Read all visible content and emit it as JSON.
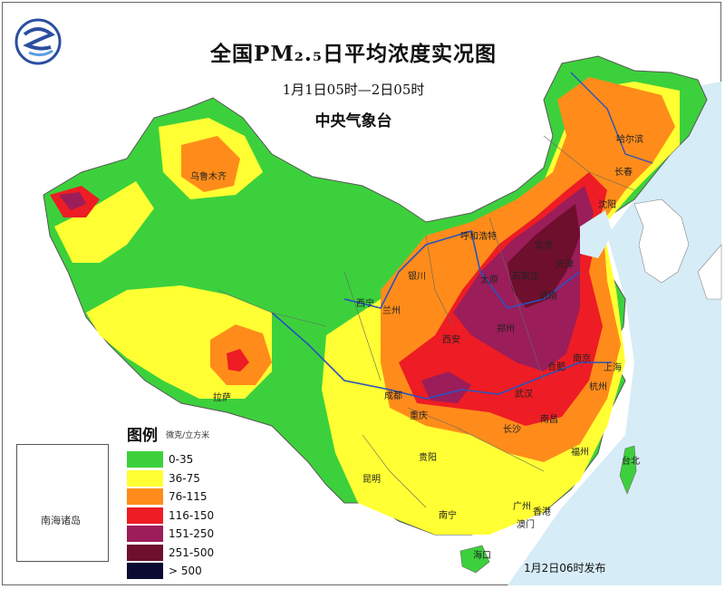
{
  "header": {
    "title": "全国PM₂.₅日平均浓度实况图",
    "subtitle": "1月1日05时—2日05时",
    "agency": "中央气象台"
  },
  "logo": {
    "icon": "cma-logo"
  },
  "legend": {
    "title": "图例",
    "unit": "微克/立方米",
    "items": [
      {
        "label": "0-35",
        "color": "#3cd13c"
      },
      {
        "label": "36-75",
        "color": "#ffff33"
      },
      {
        "label": "76-115",
        "color": "#ff8c1a"
      },
      {
        "label": "116-150",
        "color": "#ee1c24"
      },
      {
        "label": "151-250",
        "color": "#9b1d5a"
      },
      {
        "label": "251-500",
        "color": "#6e0f2d"
      },
      {
        "label": "> 500",
        "color": "#0a0a33"
      }
    ]
  },
  "inset": {
    "label": "南海诸岛"
  },
  "release": "1月2日06时发布",
  "cities": {
    "urumqi": "乌鲁木齐",
    "harbin": "哈尔滨",
    "changchun": "长春",
    "shenyang": "沈阳",
    "hohhot": "呼和浩特",
    "beijing": "北京",
    "tianjin": "天津",
    "shijiazhuang": "石家庄",
    "taiyuan": "太原",
    "jinan": "济南",
    "yinchuan": "银川",
    "xining": "西宁",
    "lanzhou": "兰州",
    "xian": "西安",
    "zhengzhou": "郑州",
    "hefei": "合肥",
    "nanjing": "南京",
    "shanghai": "上海",
    "hangzhou": "杭州",
    "wuhan": "武汉",
    "chengdu": "成都",
    "chongqing": "重庆",
    "lhasa": "拉萨",
    "changsha": "长沙",
    "nanchang": "南昌",
    "fuzhou": "福州",
    "taipei": "台北",
    "guiyang": "贵阳",
    "kunming": "昆明",
    "nanning": "南宁",
    "guangzhou": "广州",
    "hongkong": "香港",
    "macau": "澳门",
    "haikou": "海口"
  }
}
